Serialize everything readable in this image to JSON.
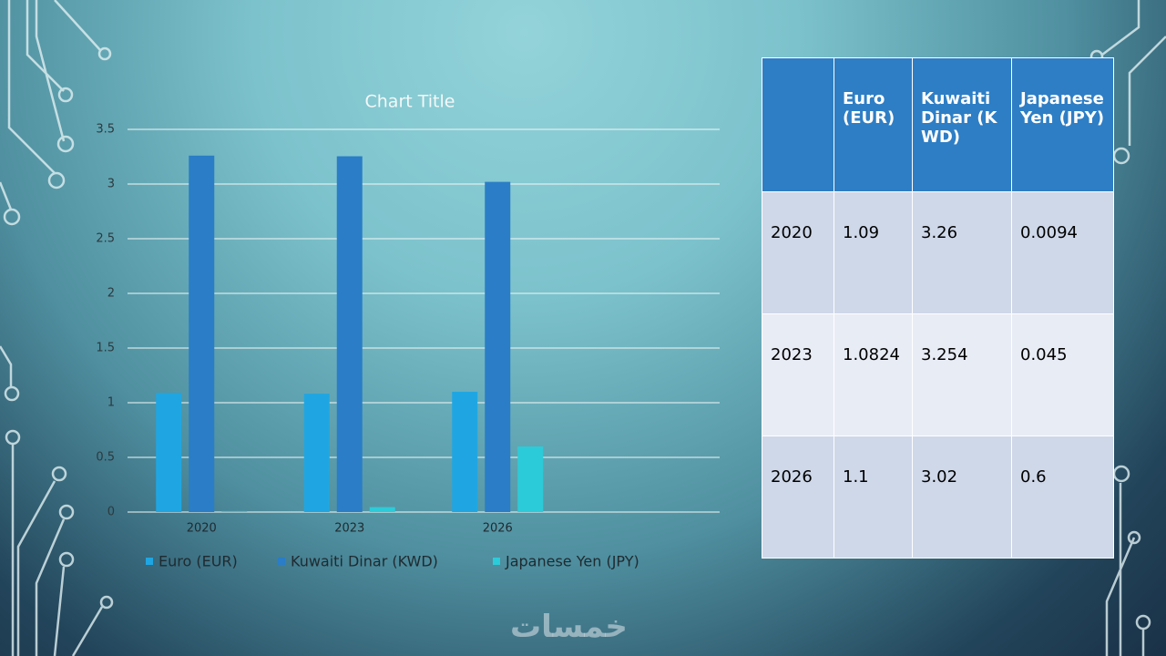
{
  "chart_data": {
    "type": "bar",
    "title": "Chart Title",
    "categories": [
      "2020",
      "2023",
      "2026",
      null
    ],
    "series": [
      {
        "name": "Euro (EUR)",
        "color": "#1fa6e2",
        "values": [
          1.09,
          1.0824,
          1.1,
          null
        ]
      },
      {
        "name": "Kuwaiti Dinar (KWD)",
        "color": "#2a7dc6",
        "values": [
          3.26,
          3.254,
          3.02,
          null
        ]
      },
      {
        "name": "Japanese Yen (JPY)",
        "color": "#2ccbd9",
        "values": [
          0.0094,
          0.045,
          0.6,
          null
        ]
      }
    ],
    "ylim": [
      0,
      3.5
    ],
    "yticks": [
      0,
      0.5,
      1,
      1.5,
      2,
      2.5,
      3,
      3.5
    ],
    "grid": true,
    "legend": "bottom"
  },
  "table": {
    "header": [
      "Euro (EUR)",
      "Kuwaiti Dinar (KWD)",
      "Japanese Yen (JPY)"
    ],
    "rows": [
      [
        "2020",
        "1.09",
        "3.26",
        "0.0094"
      ],
      [
        "2023",
        "1.0824",
        "3.254",
        "0.045"
      ],
      [
        "2026",
        "1.1",
        "3.02",
        "0.6"
      ]
    ]
  },
  "watermark": "خمسات"
}
